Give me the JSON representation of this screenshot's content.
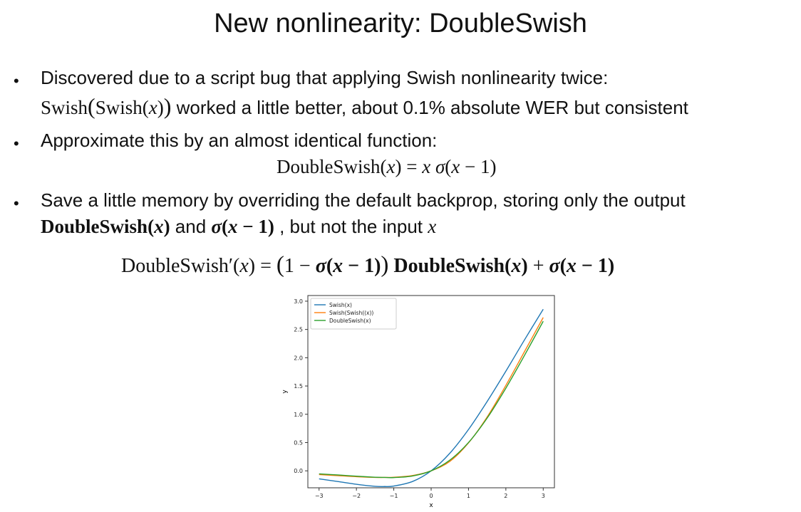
{
  "slide": {
    "title": "New nonlinearity: DoubleSwish"
  },
  "bullets": [
    {
      "line1": "Discovered due to a script bug that applying Swish nonlinearity twice:",
      "math_swish": "Swish",
      "math_inner": "Swish",
      "text_after": " worked a little better, about 0.1% absolute WER but consistent"
    },
    {
      "line1": "Approximate this by an almost identical function:",
      "eq_lhs": "DoubleSwish",
      "eq_rhs_sigma": "σ"
    },
    {
      "line1": "Save a little memory by overriding the default backprop, storing only the output",
      "bold_fn": "DoubleSwish",
      "and": " and ",
      "tail": " , but not the input ",
      "deriv_lhs": "DoubleSwish′"
    }
  ],
  "chart_data": {
    "type": "line",
    "title": "",
    "xlabel": "x",
    "ylabel": "y",
    "xlim": [
      -3.3,
      3.3
    ],
    "ylim": [
      -0.3,
      3.1
    ],
    "xticks": [
      -3,
      -2,
      -1,
      0,
      1,
      2,
      3
    ],
    "xtick_labels": [
      "−3",
      "−2",
      "−1",
      "0",
      "1",
      "2",
      "3"
    ],
    "yticks": [
      0.0,
      0.5,
      1.0,
      1.5,
      2.0,
      2.5,
      3.0
    ],
    "ytick_labels": [
      "0.0",
      "0.5",
      "1.0",
      "1.5",
      "2.0",
      "2.5",
      "3.0"
    ],
    "grid": false,
    "legend_position": "upper-left",
    "x": [
      -3.0,
      -2.5,
      -2.0,
      -1.5,
      -1.25,
      -1.0,
      -0.5,
      0.0,
      0.5,
      1.0,
      1.5,
      2.0,
      2.5,
      3.0
    ],
    "series": [
      {
        "name": "Swish(x)",
        "color": "#1f77b4",
        "values": [
          -0.142,
          -0.189,
          -0.238,
          -0.274,
          -0.278,
          -0.269,
          -0.189,
          0.0,
          0.311,
          0.731,
          1.227,
          1.762,
          2.317,
          2.858
        ]
      },
      {
        "name": "Swish(Swish((x))",
        "color": "#ff7f0e",
        "values": [
          -0.066,
          -0.085,
          -0.104,
          -0.116,
          -0.117,
          -0.114,
          -0.084,
          0.0,
          0.167,
          0.494,
          0.953,
          1.511,
          2.11,
          2.711
        ]
      },
      {
        "name": "DoubleSwish(x)",
        "color": "#2ca02c",
        "values": [
          -0.054,
          -0.073,
          -0.095,
          -0.113,
          -0.117,
          -0.119,
          -0.091,
          0.0,
          0.189,
          0.5,
          0.934,
          1.462,
          2.043,
          2.645
        ]
      }
    ]
  }
}
